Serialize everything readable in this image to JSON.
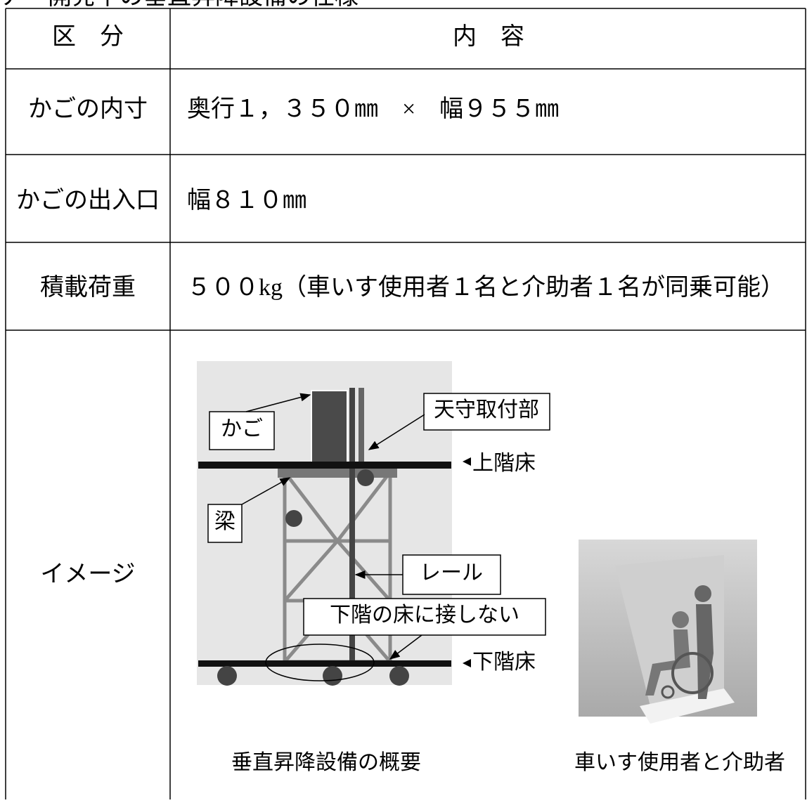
{
  "heading": "ア　開発中の垂直昇降設備の仕様",
  "table": {
    "header": [
      "区　分",
      "内　容"
    ],
    "rows": [
      [
        "かごの内寸",
        "奥行１，３５０㎜　×　幅９５５㎜"
      ],
      [
        "かごの出入口",
        "幅８１０㎜"
      ],
      [
        "積載荷重",
        "５００kg（車いす使用者１名と介助者１名が同乗可能）"
      ],
      [
        "イメージ"
      ]
    ]
  },
  "figure": {
    "labels": [
      "かご",
      "天守取付部",
      "上階床",
      "梁",
      "レール",
      "下階の床に接しない",
      "下階床"
    ],
    "captions": [
      "垂直昇降設備の概要",
      "車いす使用者と介助者"
    ]
  }
}
